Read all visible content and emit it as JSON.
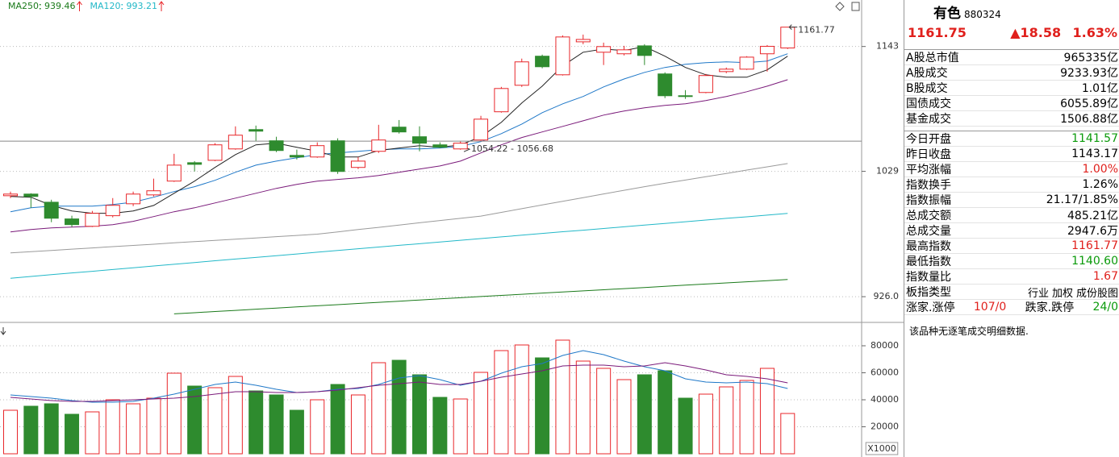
{
  "chart_data": [
    {
      "type": "candlestick",
      "log": true,
      "grid": true,
      "ylim": [
        907.4,
        1188.6
      ],
      "yticks": [
        1143,
        1029,
        {
          "value": 926,
          "label": "926.0"
        }
      ],
      "up_color": "#e8262a",
      "down_color": "#2e8b2e",
      "open": [
        1008.1,
        1009.5,
        1002.6,
        988.6,
        982.5,
        991.3,
        1001.3,
        1008.8,
        1020.6,
        1036.5,
        1038.6,
        1048.6,
        1065.8,
        1055.8,
        1042.9,
        1041.5,
        1055.8,
        1032.4,
        1046.5,
        1068.0,
        1059.4,
        1052.2,
        1048.6,
        1056.5,
        1081.9,
        1106.3,
        1133.7,
        1116.1,
        1147.5,
        1137.5,
        1136.0,
        1143.6,
        1116.9,
        1096.6,
        1099.6,
        1119.1,
        1121.4,
        1136.0,
        1141.57
      ],
      "high": [
        1011.6,
        1010.2,
        1004.7,
        991.3,
        995.3,
        1006.1,
        1011.6,
        1022.7,
        1044.3,
        1037.9,
        1053.7,
        1068.7,
        1069.4,
        1059.4,
        1048.0,
        1054.4,
        1058.0,
        1041.5,
        1070.1,
        1074.4,
        1068.7,
        1054.4,
        1055.1,
        1078.2,
        1104.8,
        1131.4,
        1135.2,
        1153.7,
        1154.5,
        1146.7,
        1143.6,
        1145.2,
        1118.4,
        1101.8,
        1116.9,
        1122.9,
        1133.7,
        1144.4,
        1161.77
      ],
      "low": [
        1006.1,
        997.9,
        985.9,
        981.9,
        981.9,
        989.9,
        999.3,
        1007.5,
        1019.9,
        1028.9,
        1037.9,
        1047.9,
        1055.8,
        1045.8,
        1039.3,
        1040.8,
        1026.8,
        1031.0,
        1045.1,
        1062.2,
        1046.5,
        1049.4,
        1047.9,
        1055.8,
        1081.1,
        1104.8,
        1122.2,
        1115.4,
        1145.2,
        1125.3,
        1134.4,
        1125.3,
        1094.4,
        1093.7,
        1098.9,
        1117.6,
        1120.7,
        1119.1,
        1140.6
      ],
      "close": [
        1009.5,
        1007.5,
        989.2,
        983.9,
        993.3,
        1000.0,
        1009.5,
        1012.3,
        1034.4,
        1035.1,
        1052.2,
        1060.8,
        1064.4,
        1047.2,
        1041.5,
        1051.5,
        1028.9,
        1037.9,
        1056.5,
        1063.7,
        1053.7,
        1050.1,
        1053.7,
        1075.2,
        1103.3,
        1128.3,
        1123.7,
        1152.2,
        1149.8,
        1142.9,
        1139.8,
        1134.4,
        1096.6,
        1095.9,
        1115.4,
        1121.4,
        1132.8,
        1143.17,
        1161.75
      ],
      "series": [
        {
          "name": "MA250",
          "color": "#1a7a1a",
          "values": [
            null,
            null,
            null,
            null,
            null,
            null,
            null,
            null,
            912.7,
            913.6,
            914.5,
            915.4,
            916.3,
            917.2,
            918.1,
            918.9,
            919.8,
            920.7,
            921.6,
            922.5,
            923.4,
            924.3,
            925.2,
            926.1,
            927.0,
            927.9,
            928.8,
            929.7,
            930.5,
            931.4,
            932.3,
            933.2,
            934.1,
            935.0,
            935.9,
            936.8,
            937.7,
            938.6,
            939.46
          ]
        },
        {
          "name": "MA120",
          "color": "#22b8c8",
          "values": [
            940.5,
            941.9,
            943.3,
            944.7,
            946.0,
            947.4,
            948.8,
            950.2,
            951.6,
            953.0,
            954.4,
            955.8,
            957.1,
            958.5,
            959.9,
            961.3,
            962.7,
            964.1,
            965.5,
            966.9,
            968.2,
            969.6,
            971.0,
            972.4,
            973.8,
            975.2,
            976.6,
            978.0,
            979.3,
            980.7,
            982.1,
            983.5,
            984.9,
            986.3,
            987.7,
            989.1,
            990.4,
            991.8,
            993.21
          ]
        },
        {
          "color": "#9a9a9a",
          "values": [
            960.7,
            961.7,
            962.7,
            963.8,
            964.8,
            965.8,
            966.8,
            967.8,
            968.9,
            969.9,
            970.9,
            971.9,
            972.9,
            974.0,
            975.0,
            976.0,
            977.9,
            979.8,
            981.6,
            983.5,
            985.4,
            987.3,
            989.1,
            991.0,
            994.1,
            997.2,
            1000.3,
            1003.4,
            1006.5,
            1009.6,
            1012.7,
            1015.8,
            1018.7,
            1021.5,
            1024.4,
            1027.2,
            1030.1,
            1032.9,
            1035.8
          ]
        },
        {
          "color": "#7a1a7a",
          "values": [
            977.8,
            979.8,
            981.2,
            981.9,
            982.5,
            983.9,
            986.6,
            990.6,
            994.6,
            997.9,
            1002.0,
            1006.1,
            1010.2,
            1014.4,
            1017.8,
            1020.6,
            1022.0,
            1023.4,
            1025.4,
            1028.2,
            1031.0,
            1033.7,
            1037.9,
            1045.1,
            1052.2,
            1058.7,
            1063.7,
            1068.7,
            1073.7,
            1078.9,
            1082.6,
            1085.5,
            1087.8,
            1089.2,
            1092.2,
            1095.9,
            1100.3,
            1105.5,
            1111.5
          ]
        },
        {
          "color": "#1f78c8",
          "values": [
            994.6,
            997.9,
            999.3,
            999.3,
            999.3,
            1000.6,
            1002.6,
            1006.8,
            1011.6,
            1015.8,
            1021.3,
            1028.2,
            1034.4,
            1037.9,
            1040.8,
            1043.6,
            1045.1,
            1046.5,
            1047.9,
            1048.6,
            1048.6,
            1049.4,
            1050.8,
            1055.1,
            1062.2,
            1070.8,
            1081.1,
            1089.2,
            1095.9,
            1104.8,
            1112.2,
            1118.4,
            1123.0,
            1126.0,
            1127.6,
            1128.3,
            1127.6,
            1129.1,
            1136.0
          ]
        },
        {
          "color": "#222222",
          "values": [
            1007.5,
            1006.8,
            999.9,
            995.3,
            993.3,
            993.3,
            995.3,
            999.9,
            1010.2,
            1020.6,
            1032.4,
            1043.6,
            1052.2,
            1053.7,
            1050.1,
            1046.5,
            1041.5,
            1041.5,
            1047.2,
            1049.4,
            1051.5,
            1050.1,
            1052.2,
            1059.4,
            1072.3,
            1090.0,
            1105.5,
            1124.5,
            1137.5,
            1140.6,
            1139.0,
            1142.9,
            1133.7,
            1123.0,
            1116.1,
            1113.8,
            1113.8,
            1120.7,
            1133.7
          ]
        }
      ],
      "crosshair": {
        "low": 1054.22,
        "high": 1056.68,
        "label": "1054.22 - 1056.68"
      }
    },
    {
      "type": "bar",
      "grid": true,
      "ylim": [
        0,
        95522
      ],
      "yticks": [
        20000,
        40000,
        60000,
        80000
      ],
      "unit_label": "X1000",
      "up_color": "#e8262a",
      "down_color": "#2e8b2e",
      "values": [
        32239,
        35224,
        37015,
        29254,
        31045,
        40000,
        37015,
        41194,
        59701,
        50149,
        48955,
        57313,
        46567,
        43582,
        32239,
        40000,
        51343,
        43582,
        67463,
        69254,
        58507,
        41791,
        40597,
        60299,
        76418,
        80597,
        71045,
        84179,
        68657,
        63284,
        54925,
        58507,
        61493,
        41194,
        44179,
        49552,
        54328,
        63284,
        29851
      ],
      "series": [
        {
          "color": "#1f78c8",
          "values": [
            43582,
            42388,
            41194,
            39403,
            38209,
            38209,
            38806,
            41194,
            44179,
            47761,
            51343,
            53134,
            50746,
            47761,
            45373,
            45970,
            47761,
            48358,
            51343,
            56119,
            57910,
            54925,
            50746,
            53731,
            59701,
            64478,
            66866,
            72836,
            76418,
            73433,
            68657,
            64478,
            61493,
            55522,
            53134,
            52537,
            53134,
            51940,
            48358
          ]
        },
        {
          "color": "#7a1a7a",
          "values": [
            41791,
            40597,
            39403,
            38806,
            38806,
            39403,
            40000,
            40597,
            41194,
            42388,
            44179,
            45970,
            45970,
            45373,
            45373,
            45970,
            47164,
            48955,
            50746,
            51940,
            53134,
            51343,
            51343,
            53731,
            56716,
            59104,
            61493,
            65075,
            65672,
            65672,
            64478,
            65075,
            67463,
            65075,
            62090,
            58507,
            57313,
            55522,
            52537
          ]
        }
      ]
    }
  ],
  "panel": {
    "name": "有色",
    "code": "880324",
    "price": {
      "text": "1161.75",
      "color": "#e0201c"
    },
    "change": {
      "text": "▲18.58",
      "color": "#e0201c"
    },
    "change_pct": {
      "text": "1.63%",
      "color": "#e0201c"
    },
    "rows_a": [
      {
        "label": "A股总市值",
        "value": "965335亿",
        "color": "#000000"
      },
      {
        "label": "A股成交",
        "value": "9233.93亿",
        "color": "#000000"
      },
      {
        "label": "B股成交",
        "value": "1.01亿",
        "color": "#000000"
      },
      {
        "label": "国债成交",
        "value": "6055.89亿",
        "color": "#000000"
      },
      {
        "label": "基金成交",
        "value": "1506.88亿",
        "color": "#000000"
      }
    ],
    "rows_b": [
      {
        "label": "今日开盘",
        "value": "1141.57",
        "color": "#0a9a0a"
      },
      {
        "label": "昨日收盘",
        "value": "1143.17",
        "color": "#000000"
      },
      {
        "label": "平均涨幅",
        "value": "1.00%",
        "color": "#e0201c"
      },
      {
        "label": "指数换手",
        "value": "1.26%",
        "color": "#000000"
      },
      {
        "label": "指数振幅",
        "value": "21.17/1.85%",
        "color": "#000000"
      },
      {
        "label": "总成交额",
        "value": "485.21亿",
        "color": "#000000"
      },
      {
        "label": "总成交量",
        "value": "2947.6万",
        "color": "#000000"
      },
      {
        "label": "最高指数",
        "value": "1161.77",
        "color": "#e0201c"
      },
      {
        "label": "最低指数",
        "value": "1140.60",
        "color": "#0a9a0a"
      },
      {
        "label": "指数量比",
        "value": "1.67",
        "color": "#e0201c"
      }
    ],
    "board_type": {
      "label": "板指类型",
      "tags": [
        "行业",
        "加权",
        "成份股图"
      ]
    },
    "breadth": [
      {
        "label": "涨家.涨停",
        "value": "107/0",
        "color": "#e0201c"
      },
      {
        "label": "跌家.跌停",
        "value": "24/0",
        "color": "#0a9a0a"
      }
    ],
    "note": "该品种无逐笔成交明细数据."
  }
}
